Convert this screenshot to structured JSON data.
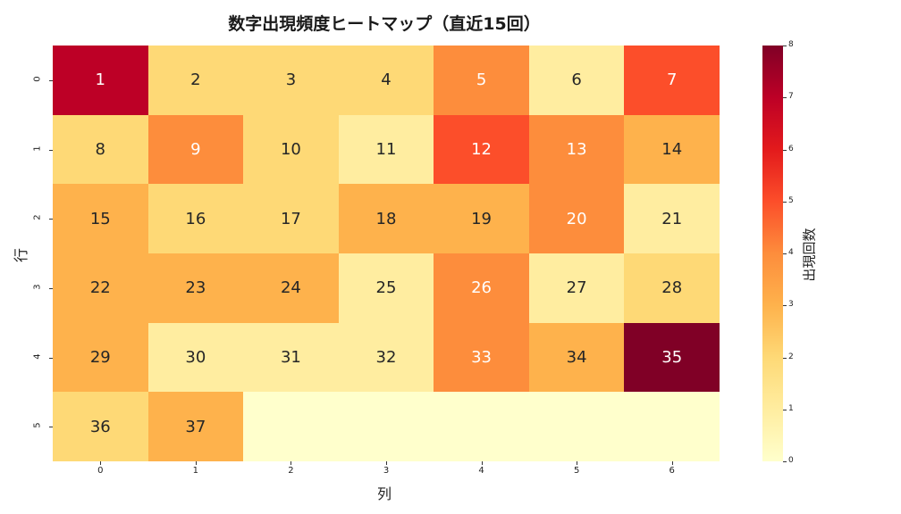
{
  "chart_data": {
    "type": "heatmap",
    "title": "数字出現頻度ヒートマップ（直近15回）",
    "xlabel": "列",
    "ylabel": "行",
    "x_ticks": [
      "0",
      "1",
      "2",
      "3",
      "4",
      "5",
      "6"
    ],
    "y_ticks": [
      "0",
      "1",
      "2",
      "3",
      "4",
      "5"
    ],
    "colormap": "YlOrRd",
    "colorbar": {
      "label": "出現回数",
      "min": 0,
      "max": 8,
      "ticks": [
        "0",
        "1",
        "2",
        "3",
        "4",
        "5",
        "6",
        "7",
        "8"
      ]
    },
    "annotations": [
      [
        "1",
        "2",
        "3",
        "4",
        "5",
        "6",
        "7"
      ],
      [
        "8",
        "9",
        "10",
        "11",
        "12",
        "13",
        "14"
      ],
      [
        "15",
        "16",
        "17",
        "18",
        "19",
        "20",
        "21"
      ],
      [
        "22",
        "23",
        "24",
        "25",
        "26",
        "27",
        "28"
      ],
      [
        "29",
        "30",
        "31",
        "32",
        "33",
        "34",
        "35"
      ],
      [
        "36",
        "37",
        "",
        "",
        "",
        "",
        ""
      ]
    ],
    "values": [
      [
        7,
        2,
        2,
        2,
        4,
        1,
        5
      ],
      [
        2,
        4,
        2,
        1,
        5,
        4,
        3
      ],
      [
        3,
        2,
        2,
        3,
        3,
        4,
        1
      ],
      [
        3,
        3,
        3,
        1,
        4,
        1,
        2
      ],
      [
        3,
        1,
        1,
        1,
        4,
        3,
        8
      ],
      [
        2,
        3,
        0,
        0,
        0,
        0,
        0
      ]
    ],
    "grid": false,
    "legend_position": "right (colorbar)"
  },
  "palette": [
    "#ffffcc",
    "#ffeda0",
    "#fed976",
    "#feb24c",
    "#fd8d3c",
    "#fc4e2a",
    "#e31a1c",
    "#bd0026",
    "#800026"
  ]
}
